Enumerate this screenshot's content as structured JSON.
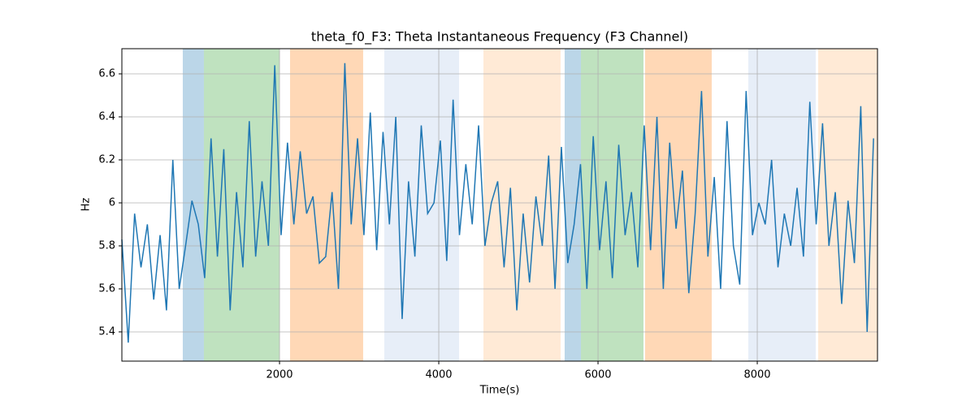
{
  "chart_data": {
    "type": "line",
    "title": "theta_f0_F3: Theta Instantaneous Frequency (F3 Channel)",
    "x_label": "Time(s)",
    "y_label": "Hz",
    "x": [
      20,
      100,
      180,
      260,
      340,
      420,
      500,
      580,
      660,
      740,
      820,
      900,
      980,
      1060,
      1140,
      1220,
      1300,
      1380,
      1460,
      1540,
      1620,
      1700,
      1780,
      1860,
      1940,
      2020,
      2100,
      2180,
      2260,
      2340,
      2420,
      2500,
      2580,
      2660,
      2740,
      2820,
      2900,
      2980,
      3060,
      3140,
      3220,
      3300,
      3380,
      3460,
      3540,
      3620,
      3700,
      3780,
      3860,
      3940,
      4020,
      4100,
      4180,
      4260,
      4340,
      4420,
      4500,
      4580,
      4660,
      4740,
      4820,
      4900,
      4980,
      5060,
      5140,
      5220,
      5300,
      5380,
      5460,
      5540,
      5620,
      5700,
      5780,
      5860,
      5940,
      6020,
      6100,
      6180,
      6260,
      6340,
      6420,
      6500,
      6580,
      6660,
      6740,
      6820,
      6900,
      6980,
      7060,
      7140,
      7220,
      7300,
      7380,
      7460,
      7540,
      7620,
      7700,
      7780,
      7860,
      7940,
      8020,
      8100,
      8180,
      8260,
      8340,
      8420,
      8500,
      8580,
      8660,
      8740,
      8820,
      8900,
      8980,
      9060,
      9140,
      9220,
      9300,
      9380,
      9460
    ],
    "series": [
      {
        "name": "theta_f0_F3",
        "color": "#1f77b4",
        "values": [
          5.83,
          5.35,
          5.95,
          5.7,
          5.9,
          5.55,
          5.85,
          5.5,
          6.2,
          5.6,
          5.8,
          6.01,
          5.9,
          5.65,
          6.3,
          5.75,
          6.25,
          5.5,
          6.05,
          5.7,
          6.38,
          5.75,
          6.1,
          5.8,
          6.64,
          5.85,
          6.28,
          5.9,
          6.24,
          5.95,
          6.03,
          5.72,
          5.75,
          6.05,
          5.6,
          6.65,
          5.9,
          6.3,
          5.85,
          6.42,
          5.78,
          6.33,
          5.9,
          6.4,
          5.46,
          6.1,
          5.75,
          6.36,
          5.95,
          6.0,
          6.29,
          5.73,
          6.48,
          5.85,
          6.18,
          5.9,
          6.36,
          5.8,
          6.0,
          6.1,
          5.7,
          6.07,
          5.5,
          5.95,
          5.63,
          6.03,
          5.8,
          6.22,
          5.6,
          6.26,
          5.72,
          5.9,
          6.18,
          5.6,
          6.31,
          5.78,
          6.1,
          5.65,
          6.27,
          5.85,
          6.05,
          5.7,
          6.36,
          5.78,
          6.4,
          5.6,
          6.28,
          5.88,
          6.15,
          5.58,
          5.95,
          6.52,
          5.75,
          6.12,
          5.6,
          6.38,
          5.8,
          5.62,
          6.52,
          5.85,
          6.0,
          5.9,
          6.2,
          5.7,
          5.95,
          5.8,
          6.07,
          5.75,
          6.47,
          5.9,
          6.37,
          5.8,
          6.05,
          5.53,
          6.01,
          5.72,
          6.45,
          5.4,
          6.3
        ]
      }
    ],
    "spans": [
      {
        "start": 785,
        "end": 1050,
        "color": "#1f77b4"
      },
      {
        "start": 1050,
        "end": 2000,
        "color": "#2ca02c"
      },
      {
        "start": 2132,
        "end": 3050,
        "color": "#ff7f0e"
      },
      {
        "start": 3316,
        "end": 4255,
        "color": "#aec7e8"
      },
      {
        "start": 4561,
        "end": 5530,
        "color": "#ffbb78"
      },
      {
        "start": 5581,
        "end": 5785,
        "color": "#1f77b4"
      },
      {
        "start": 5785,
        "end": 6571,
        "color": "#2ca02c"
      },
      {
        "start": 6591,
        "end": 7428,
        "color": "#ff7f0e"
      },
      {
        "start": 7887,
        "end": 8734,
        "color": "#aec7e8"
      },
      {
        "start": 8765,
        "end": 9510,
        "color": "#ffbb78"
      }
    ],
    "xlim": [
      20,
      9510
    ],
    "ylim": [
      5.264,
      6.717
    ],
    "xticks": [
      2000,
      4000,
      6000,
      8000
    ],
    "yticks": [
      5.4,
      5.6,
      5.8,
      6.0,
      6.2,
      6.4,
      6.6
    ],
    "grid": true
  }
}
